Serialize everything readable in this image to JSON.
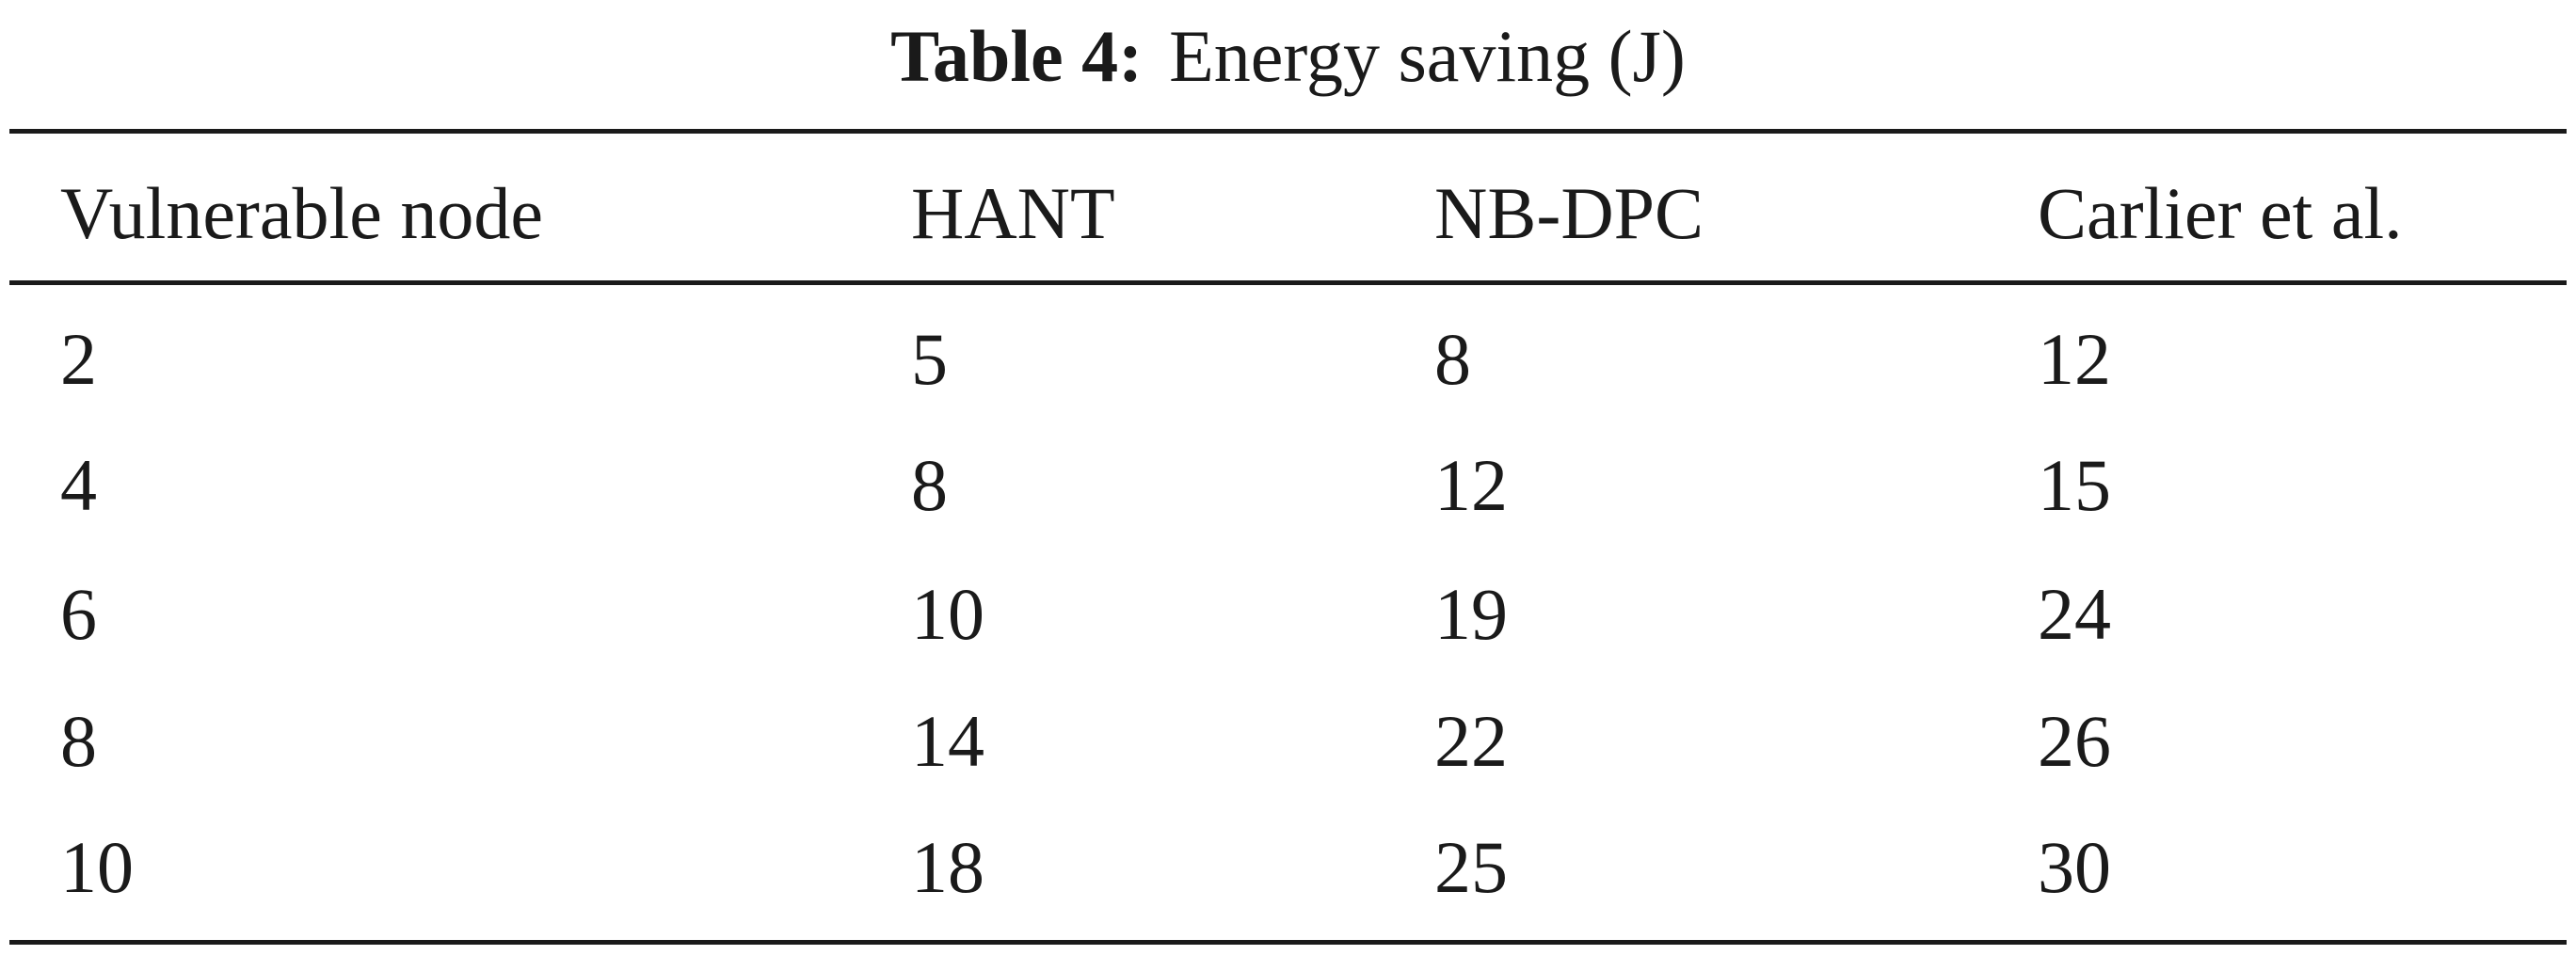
{
  "caption": {
    "label": "Table 4:",
    "text": "Energy saving (J)"
  },
  "table": {
    "headers": [
      "Vulnerable node",
      "HANT",
      "NB-DPC",
      "Carlier et al."
    ],
    "rows": [
      [
        "2",
        "5",
        "8",
        "12"
      ],
      [
        "4",
        "8",
        "12",
        "15"
      ],
      [
        "6",
        "10",
        "19",
        "24"
      ],
      [
        "8",
        "14",
        "22",
        "26"
      ],
      [
        "10",
        "18",
        "25",
        "30"
      ]
    ]
  }
}
